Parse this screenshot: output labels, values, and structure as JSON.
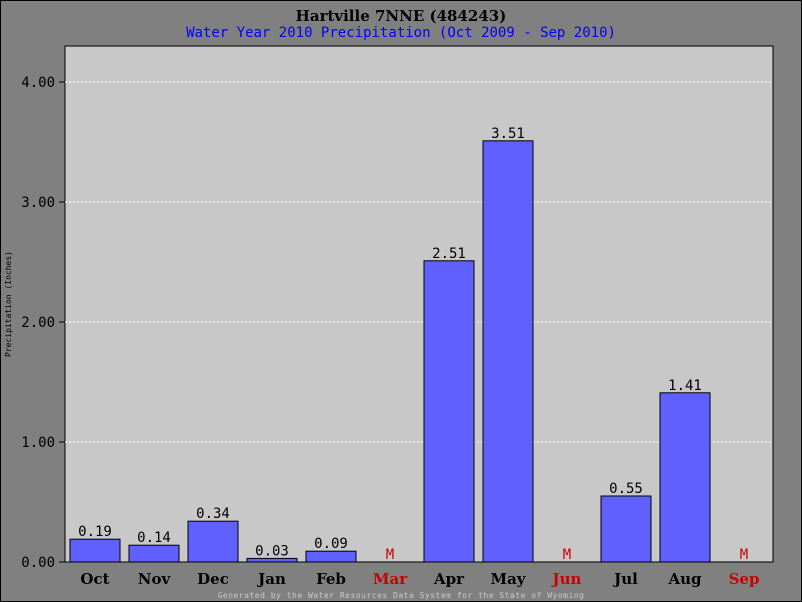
{
  "page": {
    "title": "Hartville 7NNE (484243)",
    "subtitle": "Water Year 2010 Precipitation (Oct 2009 - Sep 2010)",
    "footer": "Generated by the Water Resources Data System for the State of Wyoming"
  },
  "chart_data": {
    "type": "bar",
    "title": "Hartville 7NNE (484243)",
    "subtitle": "Water Year 2010 Precipitation (Oct 2009 - Sep 2010)",
    "xlabel": "",
    "ylabel": "Precipitation (Inches)",
    "ylim": [
      0,
      4.3
    ],
    "yticks": [
      0,
      1,
      2,
      3,
      4
    ],
    "ytick_labels": [
      "0.00",
      "1.00",
      "2.00",
      "3.00",
      "4.00"
    ],
    "grid": true,
    "categories": [
      "Oct",
      "Nov",
      "Dec",
      "Jan",
      "Feb",
      "Mar",
      "Apr",
      "May",
      "Jun",
      "Jul",
      "Aug",
      "Sep"
    ],
    "values": [
      0.19,
      0.14,
      0.34,
      0.03,
      0.09,
      null,
      2.51,
      3.51,
      null,
      0.55,
      1.41,
      null
    ],
    "value_labels": [
      "0.19",
      "0.14",
      "0.34",
      "0.03",
      "0.09",
      "M",
      "2.51",
      "3.51",
      "M",
      "0.55",
      "1.41",
      "M"
    ],
    "missing_label": "M",
    "colors": {
      "bar": "#6060ff",
      "plot_background": "#c8c8c8",
      "page_background": "#808080",
      "missing": "#cc0000",
      "grid": "#ffffff",
      "subtitle": "#0000ff"
    }
  }
}
